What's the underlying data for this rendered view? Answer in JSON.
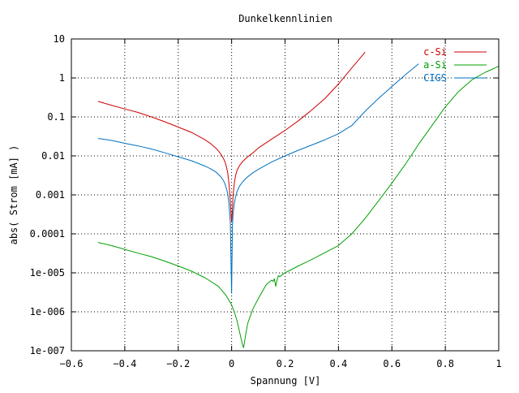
{
  "chart_data": {
    "type": "line",
    "title": "Dunkelkennlinien",
    "xlabel": "Spannung [V]",
    "ylabel": "abs( Strom [mA] )",
    "xlim": [
      -0.6,
      1.0
    ],
    "ylim": [
      1e-07,
      10
    ],
    "yscale": "log",
    "grid": true,
    "legend_position": "top-right",
    "x_ticks": [
      {
        "value": -0.6,
        "label": "−0.6"
      },
      {
        "value": -0.4,
        "label": "−0.4"
      },
      {
        "value": -0.2,
        "label": "−0.2"
      },
      {
        "value": 0,
        "label": "0"
      },
      {
        "value": 0.2,
        "label": "0.2"
      },
      {
        "value": 0.4,
        "label": "0.4"
      },
      {
        "value": 0.6,
        "label": "0.6"
      },
      {
        "value": 0.8,
        "label": "0.8"
      },
      {
        "value": 1.0,
        "label": "1"
      }
    ],
    "y_ticks": [
      {
        "value": 10,
        "label": "10"
      },
      {
        "value": 1,
        "label": "1"
      },
      {
        "value": 0.1,
        "label": "0.1"
      },
      {
        "value": 0.01,
        "label": "0.01"
      },
      {
        "value": 0.001,
        "label": "0.001"
      },
      {
        "value": 0.0001,
        "label": "0.0001"
      },
      {
        "value": 1e-05,
        "label": "1e-005"
      },
      {
        "value": 1e-06,
        "label": "1e-006"
      },
      {
        "value": 1e-07,
        "label": "1e-007"
      }
    ],
    "series": [
      {
        "name": "c-Si",
        "color": "#cc0000",
        "x": [
          -0.5,
          -0.45,
          -0.4,
          -0.35,
          -0.3,
          -0.25,
          -0.2,
          -0.15,
          -0.1,
          -0.08,
          -0.06,
          -0.05,
          -0.04,
          -0.03,
          -0.025,
          -0.02,
          -0.015,
          -0.01,
          -0.005,
          0.0,
          0.003,
          0.005,
          0.01,
          0.015,
          0.02,
          0.03,
          0.04,
          0.05,
          0.06,
          0.08,
          0.1,
          0.15,
          0.2,
          0.25,
          0.3,
          0.35,
          0.4,
          0.45,
          0.5
        ],
        "y": [
          0.25,
          0.2,
          0.16,
          0.13,
          0.1,
          0.075,
          0.055,
          0.04,
          0.026,
          0.021,
          0.016,
          0.0135,
          0.011,
          0.0085,
          0.007,
          0.0055,
          0.0038,
          0.002,
          0.0007,
          0.0002,
          0.0004,
          0.0009,
          0.002,
          0.0032,
          0.0042,
          0.0057,
          0.007,
          0.0082,
          0.0095,
          0.012,
          0.016,
          0.027,
          0.045,
          0.08,
          0.15,
          0.3,
          0.7,
          1.8,
          4.6
        ]
      },
      {
        "name": "a-Si",
        "color": "#00a000",
        "x": [
          -0.5,
          -0.45,
          -0.4,
          -0.35,
          -0.3,
          -0.25,
          -0.2,
          -0.15,
          -0.1,
          -0.05,
          -0.02,
          0.0,
          0.01,
          0.02,
          0.03,
          0.04,
          0.045,
          0.05,
          0.06,
          0.08,
          0.1,
          0.13,
          0.15,
          0.155,
          0.16,
          0.165,
          0.17,
          0.175,
          0.18,
          0.2,
          0.25,
          0.3,
          0.35,
          0.4,
          0.45,
          0.5,
          0.55,
          0.6,
          0.65,
          0.7,
          0.75,
          0.8,
          0.85,
          0.9,
          0.95,
          1.0
        ],
        "y": [
          6e-05,
          5e-05,
          4e-05,
          3.2e-05,
          2.6e-05,
          2e-05,
          1.5e-05,
          1.1e-05,
          7.5e-06,
          4.5e-06,
          2.6e-06,
          1.5e-06,
          1e-06,
          6e-07,
          3e-07,
          1.5e-07,
          1.2e-07,
          2e-07,
          5e-07,
          1.2e-06,
          2.2e-06,
          5e-06,
          6.5e-06,
          6e-06,
          7e-06,
          4.5e-06,
          6.5e-06,
          8.5e-06,
          8e-06,
          1e-05,
          1.5e-05,
          2.2e-05,
          3.3e-05,
          5e-05,
          0.0001,
          0.00025,
          0.0007,
          0.002,
          0.006,
          0.02,
          0.06,
          0.18,
          0.45,
          0.9,
          1.4,
          2.0
        ]
      },
      {
        "name": "CIGS",
        "color": "#0070c0",
        "x": [
          -0.5,
          -0.45,
          -0.4,
          -0.35,
          -0.3,
          -0.25,
          -0.2,
          -0.15,
          -0.1,
          -0.08,
          -0.06,
          -0.05,
          -0.04,
          -0.03,
          -0.025,
          -0.02,
          -0.015,
          -0.01,
          -0.005,
          0.0,
          0.003,
          0.005,
          0.01,
          0.015,
          0.02,
          0.03,
          0.04,
          0.05,
          0.06,
          0.08,
          0.1,
          0.15,
          0.2,
          0.25,
          0.3,
          0.35,
          0.4,
          0.45,
          0.5,
          0.55,
          0.6,
          0.65,
          0.7
        ],
        "y": [
          0.028,
          0.025,
          0.021,
          0.018,
          0.015,
          0.012,
          0.0095,
          0.0075,
          0.0055,
          0.0047,
          0.0039,
          0.0034,
          0.0029,
          0.0023,
          0.0019,
          0.0015,
          0.0011,
          0.0006,
          0.0002,
          3e-06,
          0.00015,
          0.0003,
          0.0006,
          0.0009,
          0.0012,
          0.0017,
          0.0021,
          0.0025,
          0.0029,
          0.0037,
          0.0045,
          0.007,
          0.01,
          0.014,
          0.019,
          0.026,
          0.037,
          0.06,
          0.14,
          0.3,
          0.6,
          1.2,
          2.3
        ]
      }
    ]
  }
}
